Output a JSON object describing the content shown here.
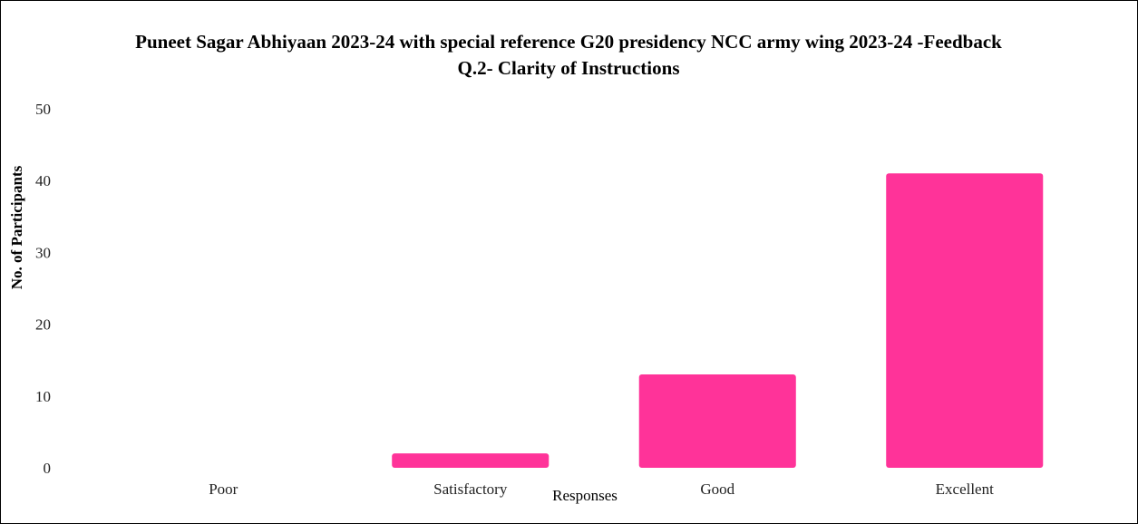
{
  "chart_data": {
    "type": "bar",
    "title": "Puneet Sagar Abhiyaan 2023-24 with special reference G20 presidency NCC army wing  2023-24 -Feedback",
    "subtitle": "Q.2- Clarity of Instructions",
    "xlabel": "Responses",
    "ylabel": "No. of Participants",
    "categories": [
      "Poor",
      "Satisfactory",
      "Good",
      "Excellent"
    ],
    "values": [
      0,
      2,
      13,
      41
    ],
    "ylim": [
      0,
      50
    ],
    "yticks": [
      "0",
      "10",
      "20",
      "30",
      "40",
      "50"
    ],
    "grid": false,
    "legend": "none",
    "bar_color": "#ff3399"
  }
}
